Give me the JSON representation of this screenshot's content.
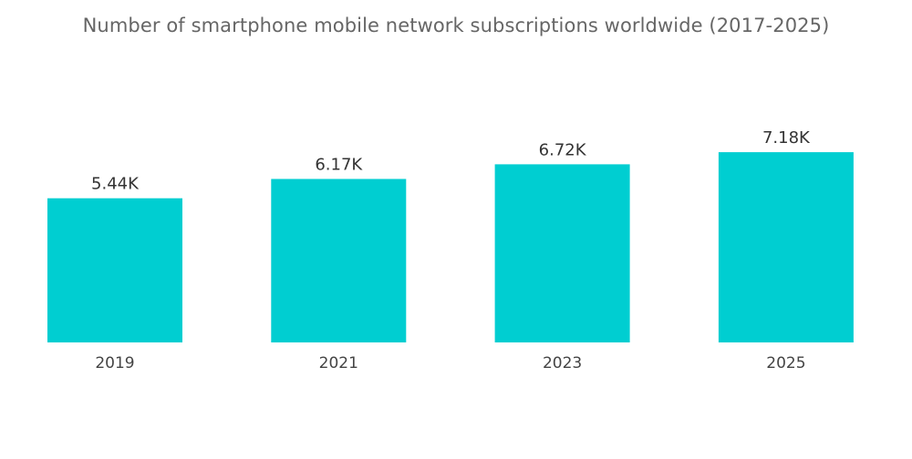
{
  "chart_data": {
    "type": "bar",
    "title": "Number of smartphone mobile network subscriptions worldwide (2017-2025)",
    "categories": [
      "2019",
      "2021",
      "2023",
      "2025"
    ],
    "values": [
      5.44,
      6.17,
      6.72,
      7.18
    ],
    "value_labels": [
      "5.44K",
      "6.17K",
      "6.72K",
      "7.18K"
    ],
    "xlabel": "",
    "ylabel": "",
    "ylim": [
      0,
      7.8
    ],
    "grid": false,
    "legend": "none",
    "bar_color": "#00CED1"
  }
}
